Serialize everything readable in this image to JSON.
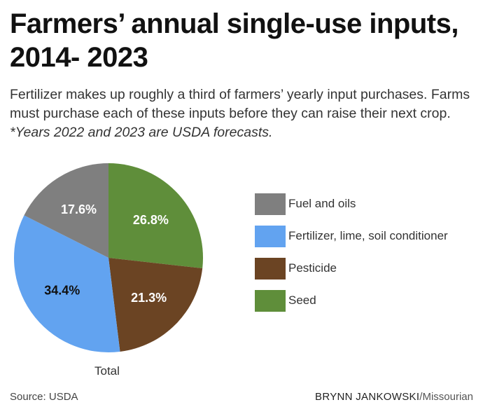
{
  "title": "Farmers’ annual single-use inputs, 2014- 2023",
  "subtitle": "Fertilizer makes up roughly a third of farmers’ yearly input purchases. Farms must purchase each of these inputs before they can raise their next crop.",
  "subtitle_note": "*Years 2022 and 2023 are USDA forecasts.",
  "source": "Source: USDA",
  "credit_name": "BRYNN JANKOWSKI",
  "credit_pub": "/Missourian",
  "chart_data": {
    "type": "pie",
    "xlabel": "Total",
    "legend_position": "right",
    "slices": [
      {
        "label": "Seed",
        "value": 26.8,
        "text": "26.8%",
        "color": "#5f8e3a",
        "label_color": "#ffffff"
      },
      {
        "label": "Pesticide",
        "value": 21.3,
        "text": "21.3%",
        "color": "#6b4423",
        "label_color": "#ffffff"
      },
      {
        "label": "Fertilizer, lime, soil conditioner",
        "value": 34.4,
        "text": "34.4%",
        "color": "#62a3f0",
        "label_color": "#111111"
      },
      {
        "label": "Fuel and oils",
        "value": 17.6,
        "text": "17.6%",
        "color": "#7f7f7f",
        "label_color": "#ffffff"
      }
    ],
    "legend": [
      {
        "label": "Fuel and oils",
        "color": "#7f7f7f"
      },
      {
        "label": "Fertilizer, lime, soil conditioner",
        "color": "#62a3f0"
      },
      {
        "label": "Pesticide",
        "color": "#6b4423"
      },
      {
        "label": "Seed",
        "color": "#5f8e3a"
      }
    ]
  }
}
